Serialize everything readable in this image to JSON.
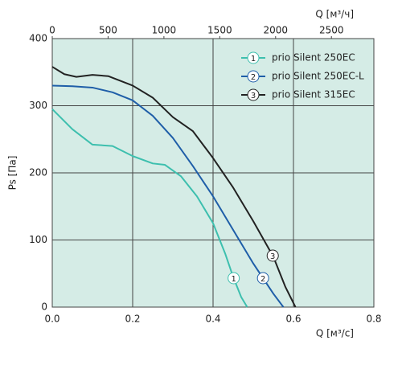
{
  "chart_data": {
    "type": "line",
    "x_label": "Q [м³/с]",
    "x2_label": "Q [м³/ч]",
    "y_label": "Ps [Па]",
    "xlim": [
      0,
      0.8
    ],
    "xticks": [
      {
        "value": 0,
        "label": "0.0"
      },
      0.2,
      0.4,
      0.6,
      0.8
    ],
    "x2lim": [
      0,
      2880
    ],
    "x2ticks": [
      0,
      500,
      1000,
      1500,
      2000,
      2500
    ],
    "ylim": [
      0,
      400
    ],
    "yticks": [
      0,
      100,
      200,
      300,
      400
    ],
    "grid": true,
    "legend": "top-right",
    "background": "#d5ece6",
    "series": [
      {
        "name": "prio Silent 250EC",
        "marker": "1",
        "color": "#3dbfae",
        "x": [
          0,
          0.05,
          0.1,
          0.15,
          0.2,
          0.25,
          0.28,
          0.32,
          0.36,
          0.4,
          0.43,
          0.45,
          0.47,
          0.485
        ],
        "values": [
          295,
          265,
          242,
          240,
          225,
          214,
          212,
          195,
          165,
          125,
          80,
          45,
          15,
          0
        ]
      },
      {
        "name": "prio Silent 250EC-L",
        "marker": "2",
        "color": "#1f5ea8",
        "x": [
          0,
          0.05,
          0.1,
          0.15,
          0.2,
          0.25,
          0.3,
          0.35,
          0.4,
          0.45,
          0.5,
          0.55,
          0.575
        ],
        "values": [
          330,
          329,
          327,
          320,
          308,
          285,
          252,
          210,
          165,
          115,
          65,
          20,
          0
        ]
      },
      {
        "name": "prio Silent 315EC",
        "marker": "3",
        "color": "#222222",
        "x": [
          0,
          0.03,
          0.06,
          0.1,
          0.14,
          0.2,
          0.25,
          0.3,
          0.35,
          0.4,
          0.45,
          0.5,
          0.55,
          0.58,
          0.605
        ],
        "values": [
          358,
          347,
          343,
          346,
          344,
          330,
          312,
          283,
          262,
          222,
          178,
          128,
          75,
          30,
          0
        ]
      }
    ]
  }
}
